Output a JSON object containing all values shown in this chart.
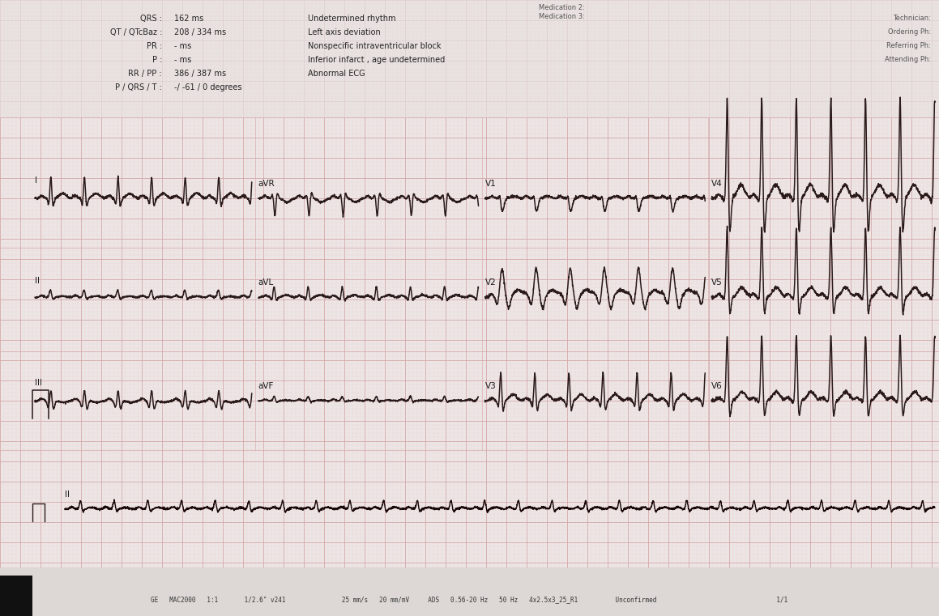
{
  "bg_color": "#ede5e5",
  "bg_color_top": "#e8e0e0",
  "grid_color_major": "#d4a8a8",
  "grid_color_minor": "#e8d0d0",
  "ecg_line_color": "#2a1a1a",
  "ecg_line_color_rhythm": "#1a0808",
  "paper_color": "#e8e0de",
  "header": {
    "labels_left": [
      "QRS :",
      "QT / QTcBaz :",
      "PR :",
      "P :",
      "RR / PP :",
      "P / QRS / T :"
    ],
    "values_left": [
      "162 ms",
      "208 / 334 ms",
      "- ms",
      "- ms",
      "386 / 387 ms",
      "-/ -61 / 0 degrees"
    ],
    "interpretation": [
      "Undetermined rhythm",
      "Left axis deviation",
      "Nonspecific intraventricular block",
      "Inferior infarct , age undetermined",
      "Abnormal ECG"
    ],
    "right_header": [
      "Technician:",
      "Ordering Ph:",
      "Referring Ph:",
      "Attending Ph:"
    ],
    "medication": [
      "Medication 2:",
      "Medication 3:"
    ]
  },
  "footer": "GE   MAC2000   1:1       1/2.6\" v241               25 mm/s   20 mm/mV     ADS   0.56-20 Hz   50 Hz   4x2.5x3_25_R1          Unconfirmed                                1/1",
  "lead_labels": {
    "row0": [
      "I",
      "aVR",
      "V1",
      "V4"
    ],
    "row1": [
      "II",
      "aVL",
      "V2",
      "V5"
    ],
    "row2": [
      "III",
      "aVF",
      "V3",
      "V6"
    ],
    "row3": [
      "II"
    ]
  }
}
